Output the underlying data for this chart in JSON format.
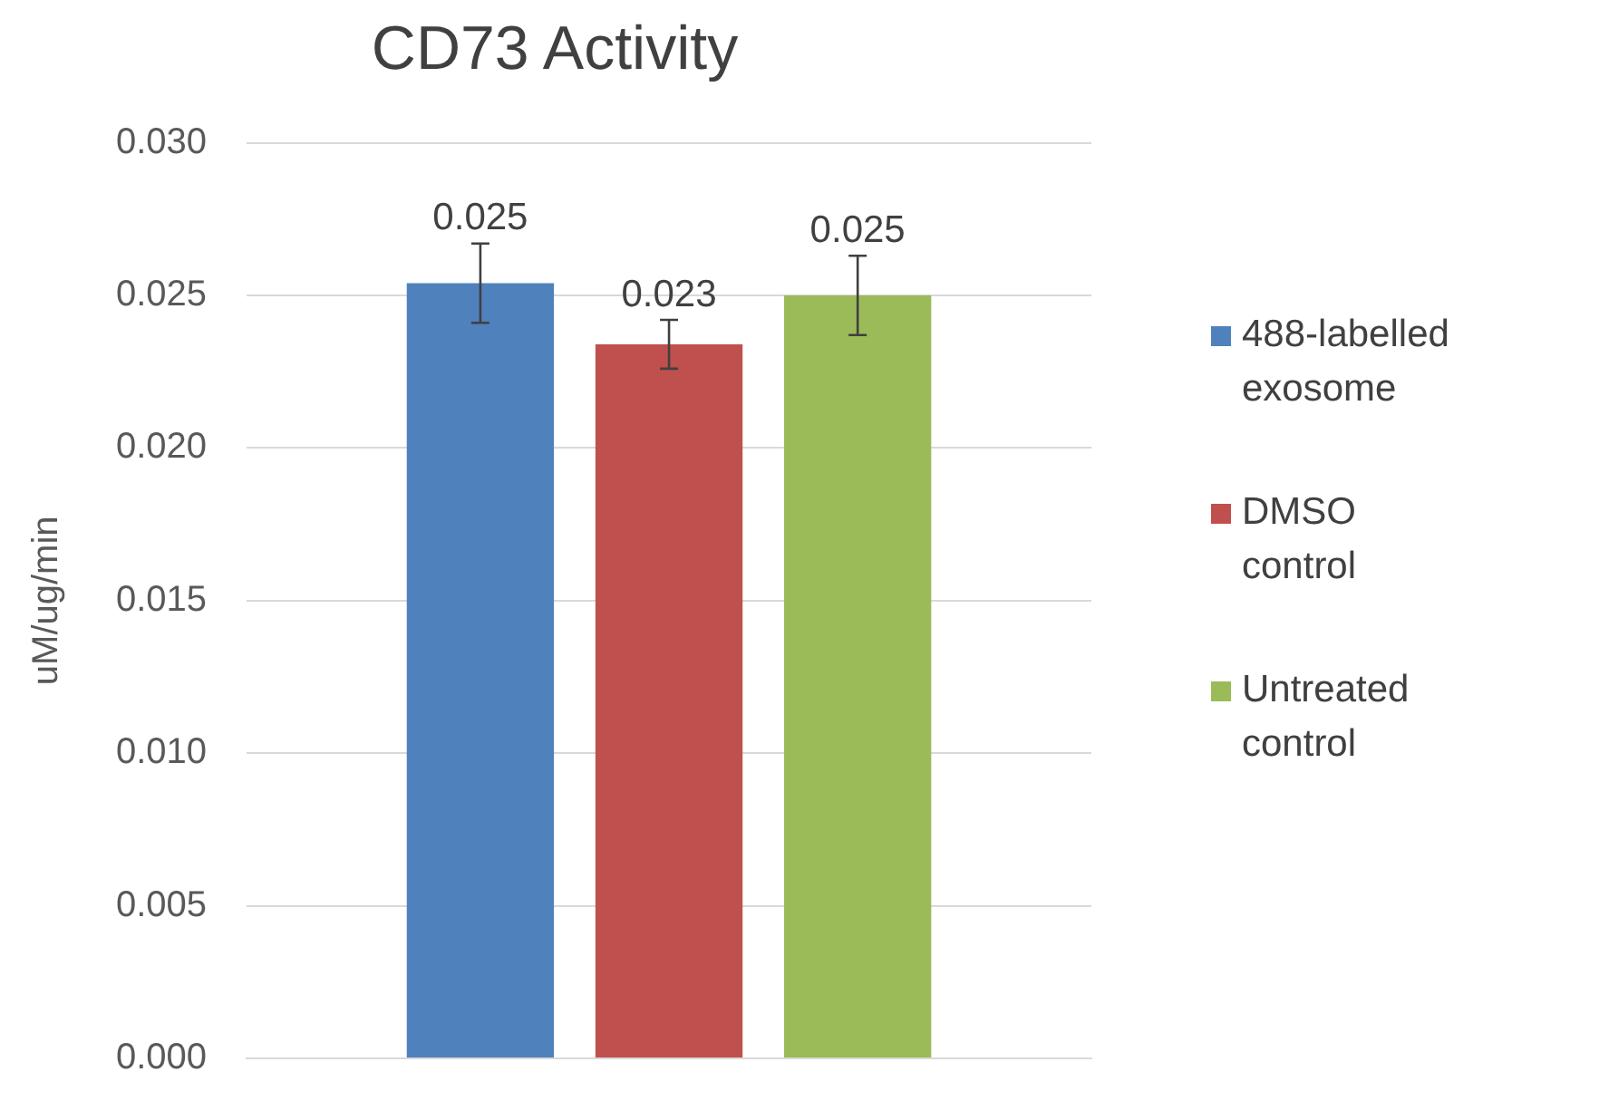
{
  "chart_data": {
    "type": "bar",
    "title": "CD73 Activity",
    "ylabel": "uM/ug/min",
    "categories": [
      null
    ],
    "series": [
      {
        "name": "488-labelled exosome",
        "color": "#4f81bd",
        "values": [
          0.0254
        ],
        "errors": [
          0.0013
        ],
        "value_labels": [
          "0.025"
        ]
      },
      {
        "name": "DMSO control",
        "color": "#c0504d",
        "values": [
          0.0234
        ],
        "errors": [
          0.0008
        ],
        "value_labels": [
          "0.023"
        ]
      },
      {
        "name": "Untreated control",
        "color": "#9bbb59",
        "values": [
          0.025
        ],
        "errors": [
          0.0013
        ],
        "value_labels": [
          "0.025"
        ]
      }
    ],
    "ylim": [
      0,
      0.03
    ],
    "yticks": [
      {
        "value": 0,
        "label": "0.000"
      },
      {
        "value": 0.005,
        "label": "0.005"
      },
      {
        "value": 0.01,
        "label": "0.010"
      },
      {
        "value": 0.015,
        "label": "0.015"
      },
      {
        "value": 0.02,
        "label": "0.020"
      },
      {
        "value": 0.025,
        "label": "0.025"
      },
      {
        "value": 0.03,
        "label": "0.030"
      }
    ],
    "grid": "y",
    "legend": "right"
  }
}
